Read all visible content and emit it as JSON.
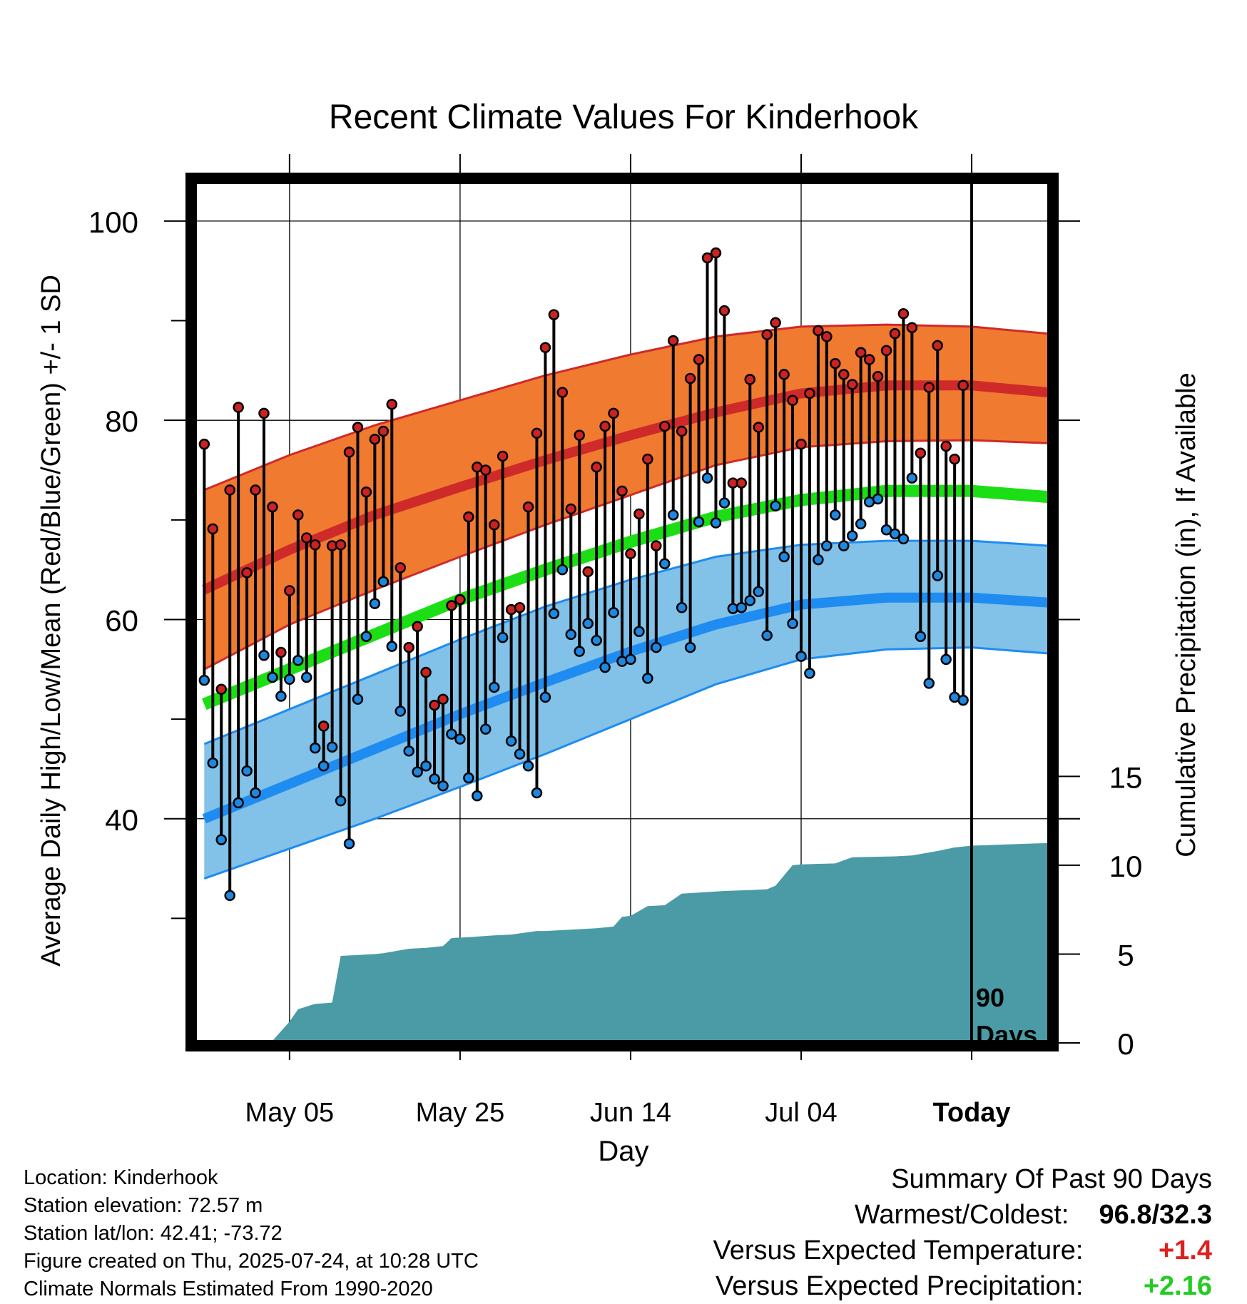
{
  "chart_data": {
    "type": "line",
    "title": "Recent Climate Values For Kinderhook",
    "xlabel": "Day",
    "ylabel": "Average Daily High/Low/Mean (Red/Blue/Green) +/- 1 SD",
    "y2label": "Cumulative Precipitation (in), If Available",
    "x_ticks": [
      "May 05",
      "May 25",
      "Jun 14",
      "Jul 04",
      "Today"
    ],
    "x_tick_days": [
      -80,
      -60,
      -40,
      -20,
      0
    ],
    "xlim": [
      -91.2,
      9.2
    ],
    "ylim": [
      17.5,
      104
    ],
    "y_ticks": [
      100,
      80,
      60,
      40
    ],
    "y_minor_ticks": [
      90,
      70,
      50,
      30
    ],
    "y2_ticks": [
      15,
      10,
      5,
      0
    ],
    "y2lim": [
      0,
      48.5
    ],
    "today_marker_label": "90\nDays",
    "grid": true,
    "normals_day": [
      -90,
      -80,
      -70,
      -60,
      -50,
      -40,
      -30,
      -20,
      -10,
      0,
      9
    ],
    "normal_high": [
      63.0,
      67.0,
      70.5,
      73.3,
      76.0,
      78.5,
      80.8,
      82.7,
      83.5,
      83.5,
      82.8
    ],
    "normal_high_upper": [
      73.0,
      76.5,
      79.5,
      82.0,
      84.5,
      86.6,
      88.4,
      89.4,
      89.6,
      89.4,
      88.7
    ],
    "normal_high_lower": [
      55.0,
      59.5,
      63.0,
      66.3,
      69.5,
      72.5,
      75.5,
      77.3,
      77.9,
      78.0,
      77.7
    ],
    "normal_mean": [
      51.5,
      55.0,
      58.5,
      62.0,
      65.0,
      67.8,
      70.3,
      72.0,
      72.9,
      72.9,
      72.3
    ],
    "normal_low": [
      40.0,
      43.5,
      47.0,
      50.5,
      53.7,
      56.8,
      59.5,
      61.5,
      62.2,
      62.2,
      61.7
    ],
    "normal_low_upper": [
      47.5,
      51.0,
      54.5,
      58.0,
      61.3,
      64.0,
      66.3,
      67.5,
      67.9,
      67.9,
      67.4
    ],
    "normal_low_lower": [
      34.0,
      37.0,
      40.0,
      43.2,
      46.5,
      50.0,
      53.5,
      56.0,
      57.0,
      57.2,
      56.6
    ],
    "days": [
      -90,
      -89,
      -88,
      -87,
      -86,
      -85,
      -84,
      -83,
      -82,
      -81,
      -80,
      -79,
      -78,
      -77,
      -76,
      -75,
      -74,
      -73,
      -72,
      -71,
      -70,
      -69,
      -68,
      -67,
      -66,
      -65,
      -64,
      -63,
      -62,
      -61,
      -60,
      -59,
      -58,
      -57,
      -56,
      -55,
      -54,
      -53,
      -52,
      -51,
      -50,
      -49,
      -48,
      -47,
      -46,
      -45,
      -44,
      -43,
      -42,
      -41,
      -40,
      -39,
      -38,
      -37,
      -36,
      -35,
      -34,
      -33,
      -32,
      -31,
      -30,
      -29,
      -28,
      -27,
      -26,
      -25,
      -24,
      -23,
      -22,
      -21,
      -20,
      -19,
      -18,
      -17,
      -16,
      -15,
      -14,
      -13,
      -12,
      -11,
      -10,
      -9,
      -8,
      -7,
      -6,
      -5,
      -4,
      -3,
      -2,
      -1
    ],
    "daily_high": [
      77.6,
      69.1,
      53.0,
      73.0,
      81.3,
      64.7,
      73.0,
      80.7,
      71.3,
      56.7,
      62.9,
      70.5,
      68.2,
      67.5,
      49.3,
      67.4,
      67.5,
      76.8,
      79.3,
      72.8,
      78.1,
      78.9,
      81.6,
      65.2,
      57.2,
      59.3,
      54.7,
      51.4,
      52.0,
      61.4,
      62.0,
      70.3,
      75.3,
      75.0,
      69.5,
      76.4,
      61.0,
      61.2,
      71.3,
      78.7,
      87.3,
      90.6,
      82.8,
      71.1,
      78.5,
      64.8,
      75.3,
      79.4,
      80.7,
      72.9,
      66.6,
      70.6,
      76.1,
      67.4,
      79.4,
      88.0,
      78.9,
      84.2,
      86.1,
      96.3,
      96.8,
      91.0,
      73.7,
      73.7,
      84.1,
      79.3,
      88.6,
      89.8,
      84.6,
      82.0,
      77.6,
      82.7,
      89.0,
      88.4,
      85.7,
      84.6,
      83.6,
      86.8,
      86.1,
      84.4,
      87.0,
      88.7,
      90.7,
      89.3,
      76.7,
      83.3,
      87.5,
      77.4,
      76.1,
      83.5
    ],
    "daily_low": [
      53.9,
      45.6,
      37.9,
      32.3,
      41.6,
      44.8,
      42.6,
      56.4,
      54.2,
      52.3,
      54.0,
      55.9,
      54.2,
      47.1,
      45.3,
      47.2,
      41.8,
      37.5,
      52.0,
      58.3,
      61.6,
      63.8,
      57.3,
      50.8,
      46.8,
      44.7,
      45.3,
      44.0,
      43.3,
      48.5,
      48.0,
      44.1,
      42.3,
      49.0,
      53.2,
      58.2,
      47.8,
      46.5,
      45.3,
      42.6,
      52.2,
      60.6,
      65.0,
      58.5,
      56.8,
      59.6,
      57.9,
      55.2,
      60.7,
      55.8,
      56.0,
      58.8,
      54.1,
      57.2,
      65.6,
      70.5,
      61.2,
      57.2,
      69.8,
      74.2,
      69.7,
      71.7,
      61.1,
      61.2,
      61.9,
      62.8,
      58.4,
      71.4,
      66.3,
      59.6,
      56.3,
      54.6,
      66.0,
      67.4,
      70.5,
      67.4,
      68.4,
      69.6,
      71.8,
      72.1,
      69.0,
      68.6,
      68.1,
      74.2,
      58.3,
      53.6,
      64.4,
      56.0,
      52.2,
      51.9
    ],
    "precip_days": [
      -90,
      -85,
      -82,
      -80,
      -79,
      -77,
      -76,
      -75,
      -74,
      -70,
      -69,
      -66,
      -64,
      -62,
      -61,
      -59,
      -56,
      -54,
      -51,
      -50,
      -44,
      -42,
      -41,
      -40,
      -38,
      -36,
      -34,
      -29,
      -26,
      -24,
      -23,
      -21,
      -20,
      -16,
      -14,
      -9,
      -7,
      -4,
      -2,
      0,
      9
    ],
    "precip_cum": [
      0.0,
      0.12,
      0.12,
      1.2,
      1.9,
      2.2,
      2.23,
      2.27,
      4.9,
      5.0,
      5.05,
      5.3,
      5.35,
      5.45,
      5.9,
      5.95,
      6.05,
      6.1,
      6.3,
      6.3,
      6.45,
      6.55,
      7.1,
      7.15,
      7.7,
      7.75,
      8.4,
      8.55,
      8.6,
      8.65,
      8.85,
      10.0,
      10.05,
      10.1,
      10.45,
      10.5,
      10.55,
      10.8,
      11.0,
      11.1,
      11.25
    ],
    "teal_color": "#4a9ba5",
    "high_band_color": "#f07a30",
    "high_line_color": "#cf2a2a",
    "mean_line_color": "#1bdf14",
    "low_band_color": "#82c1e8",
    "low_line_color": "#1e8cf0",
    "high_point_color": "#cc2222",
    "low_point_color": "#1e88e0"
  },
  "info": {
    "location": "Location: Kinderhook",
    "elevation": "Station elevation: 72.57 m",
    "latlon": "Station lat/lon: 42.41; -73.72",
    "created": "Figure created on Thu, 2025-07-24, at 10:28 UTC",
    "normals": "Climate Normals Estimated From 1990-2020"
  },
  "summary": {
    "title": "Summary Of Past 90 Days",
    "warmest_coldest_label": "Warmest/Coldest:",
    "warmest_coldest_value": "96.8/32.3",
    "temp_label": "Versus Expected Temperature:",
    "temp_value": "+1.4",
    "temp_color": "#e0201c",
    "precip_label": "Versus Expected Precipitation:",
    "precip_value": "+2.16",
    "precip_color": "#22cc22"
  }
}
